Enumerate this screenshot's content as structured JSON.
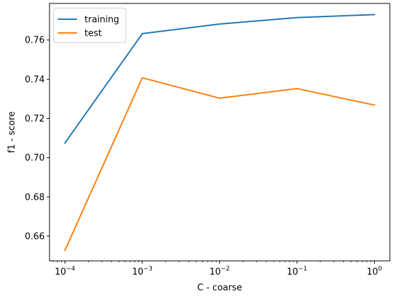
{
  "chart_data": {
    "type": "line",
    "x": [
      0.0001,
      0.001,
      0.01,
      0.1,
      1
    ],
    "x_tick_labels": [
      {
        "base": "10",
        "exp": "−4"
      },
      {
        "base": "10",
        "exp": "−3"
      },
      {
        "base": "10",
        "exp": "−2"
      },
      {
        "base": "10",
        "exp": "−1"
      },
      {
        "base": "10",
        "exp": "0"
      }
    ],
    "xscale": "log",
    "xlim": [
      6.31e-05,
      1.585
    ],
    "ylim": [
      0.6474,
      0.7786
    ],
    "y_ticks": [
      0.66,
      0.68,
      0.7,
      0.72,
      0.74,
      0.76
    ],
    "y_tick_labels": [
      "0.66",
      "0.68",
      "0.70",
      "0.72",
      "0.74",
      "0.76"
    ],
    "xlabel": "C - coarse",
    "ylabel": "f1 - score",
    "grid": false,
    "legend_position": "top-left",
    "series": [
      {
        "name": "training",
        "color": "#1f77b4",
        "values": [
          0.7075,
          0.7632,
          0.7681,
          0.7714,
          0.7729
        ]
      },
      {
        "name": "test",
        "color": "#ff7f0e",
        "values": [
          0.6528,
          0.7407,
          0.7303,
          0.7352,
          0.7268
        ]
      }
    ]
  }
}
